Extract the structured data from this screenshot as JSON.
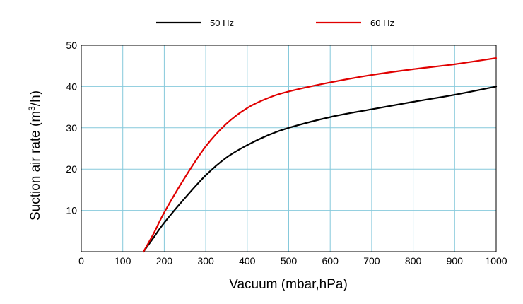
{
  "chart_data": {
    "type": "line",
    "xlabel": "Vacuum (mbar,hPa)",
    "ylabel": {
      "prefix": "Suction air rate (m",
      "superscript": "3",
      "suffix": "/h)"
    },
    "xlim": [
      0,
      1000
    ],
    "ylim": [
      0,
      50
    ],
    "x_ticks": [
      0,
      100,
      200,
      300,
      400,
      500,
      600,
      700,
      800,
      900,
      1000
    ],
    "y_ticks": [
      10,
      20,
      30,
      40,
      50
    ],
    "grid": true,
    "legend_position": "top",
    "series": [
      {
        "name": "50 Hz",
        "color": "#000000",
        "x": [
          150,
          175,
          200,
          250,
          300,
          350,
          400,
          450,
          500,
          600,
          700,
          800,
          900,
          1000
        ],
        "y": [
          0,
          3.5,
          7.0,
          13.0,
          18.5,
          22.8,
          25.8,
          28.2,
          30.0,
          32.6,
          34.5,
          36.3,
          38.0,
          40.0
        ]
      },
      {
        "name": "60 Hz",
        "color": "#e00000",
        "x": [
          150,
          175,
          200,
          250,
          300,
          350,
          400,
          450,
          500,
          600,
          700,
          800,
          900,
          1000
        ],
        "y": [
          0,
          4.5,
          9.5,
          18.0,
          25.5,
          31.0,
          34.8,
          37.2,
          38.8,
          41.0,
          42.8,
          44.2,
          45.4,
          46.9
        ]
      }
    ]
  }
}
